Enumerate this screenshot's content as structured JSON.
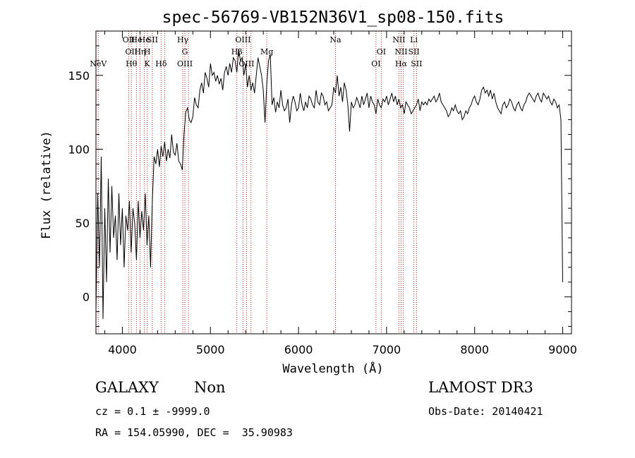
{
  "chart_data": {
    "type": "line",
    "title": "spec-56769-VB152N36V1_sp08-150.fits",
    "xlabel": "Wavelength (Å)",
    "ylabel": "Flux (relative)",
    "xlim": [
      3700,
      9100
    ],
    "ylim": [
      -25,
      180
    ],
    "xticks": [
      4000,
      5000,
      6000,
      7000,
      8000,
      9000
    ],
    "yticks": [
      0,
      50,
      100,
      150
    ],
    "x_minor_step": 200,
    "y_minor_step": 10,
    "grid": false,
    "line_color": "#000000",
    "marker_color": "#b22222",
    "series": [
      {
        "x": [
          3700,
          3720,
          3740,
          3760,
          3780,
          3800,
          3820,
          3840,
          3860,
          3880,
          3900,
          3920,
          3940,
          3960,
          3980,
          4000,
          4020,
          4040,
          4060,
          4080,
          4100,
          4120,
          4140,
          4160,
          4180,
          4200,
          4220,
          4240,
          4260,
          4280,
          4300,
          4320,
          4340,
          4360,
          4380,
          4400,
          4420,
          4440,
          4460,
          4480,
          4500,
          4520,
          4540,
          4560,
          4580,
          4600,
          4620,
          4640,
          4660,
          4680,
          4700,
          4720,
          4740,
          4760,
          4780,
          4800,
          4820,
          4840,
          4860,
          4880,
          4900,
          4920,
          4940,
          4960,
          4980,
          5000,
          5020,
          5040,
          5060,
          5080,
          5100,
          5120,
          5140,
          5160,
          5180,
          5200,
          5220,
          5240,
          5260,
          5280,
          5300,
          5320,
          5340,
          5360,
          5380,
          5400,
          5420,
          5440,
          5460,
          5480,
          5500,
          5520,
          5540,
          5560,
          5580,
          5600,
          5620,
          5640,
          5660,
          5680,
          5700,
          5720,
          5740,
          5760,
          5780,
          5800,
          5820,
          5840,
          5860,
          5880,
          5900,
          5920,
          5940,
          5960,
          5980,
          6000,
          6020,
          6040,
          6060,
          6080,
          6100,
          6120,
          6140,
          6160,
          6180,
          6200,
          6220,
          6240,
          6260,
          6280,
          6300,
          6320,
          6340,
          6360,
          6380,
          6400,
          6420,
          6440,
          6460,
          6480,
          6500,
          6520,
          6540,
          6560,
          6580,
          6600,
          6620,
          6640,
          6660,
          6680,
          6700,
          6720,
          6740,
          6760,
          6780,
          6800,
          6820,
          6840,
          6860,
          6880,
          6900,
          6920,
          6940,
          6960,
          6980,
          7000,
          7020,
          7040,
          7060,
          7080,
          7100,
          7120,
          7140,
          7160,
          7180,
          7200,
          7220,
          7240,
          7260,
          7280,
          7300,
          7320,
          7340,
          7360,
          7380,
          7400,
          7420,
          7440,
          7460,
          7480,
          7500,
          7520,
          7540,
          7560,
          7580,
          7600,
          7620,
          7640,
          7660,
          7680,
          7700,
          7720,
          7740,
          7760,
          7780,
          7800,
          7820,
          7840,
          7860,
          7880,
          7900,
          7920,
          7940,
          7960,
          7980,
          8000,
          8020,
          8040,
          8060,
          8080,
          8100,
          8120,
          8140,
          8160,
          8180,
          8200,
          8220,
          8240,
          8260,
          8280,
          8300,
          8320,
          8340,
          8360,
          8380,
          8400,
          8420,
          8440,
          8460,
          8480,
          8500,
          8520,
          8540,
          8560,
          8580,
          8600,
          8620,
          8640,
          8660,
          8680,
          8700,
          8720,
          8740,
          8760,
          8780,
          8800,
          8820,
          8840,
          8860,
          8880,
          8900,
          8920,
          8940,
          8960,
          8980,
          9000
        ],
        "y": [
          -10,
          70,
          20,
          95,
          -15,
          60,
          10,
          80,
          30,
          75,
          40,
          55,
          25,
          70,
          35,
          60,
          20,
          55,
          45,
          65,
          30,
          60,
          50,
          25,
          65,
          40,
          58,
          45,
          70,
          35,
          55,
          20,
          65,
          95,
          90,
          100,
          88,
          102,
          95,
          105,
          92,
          100,
          94,
          110,
          98,
          96,
          104,
          92,
          90,
          86,
          110,
          125,
          128,
          120,
          118,
          122,
          135,
          130,
          128,
          140,
          145,
          138,
          152,
          148,
          142,
          158,
          150,
          152,
          146,
          150,
          144,
          148,
          140,
          152,
          156,
          150,
          158,
          152,
          162,
          160,
          152,
          168,
          160,
          162,
          150,
          158,
          142,
          150,
          140,
          145,
          138,
          150,
          162,
          156,
          150,
          140,
          118,
          144,
          160,
          164,
          130,
          135,
          125,
          132,
          128,
          140,
          130,
          126,
          128,
          134,
          118,
          130,
          136,
          132,
          126,
          128,
          138,
          130,
          126,
          132,
          128,
          136,
          134,
          130,
          128,
          140,
          132,
          130,
          138,
          136,
          130,
          132,
          126,
          128,
          130,
          142,
          138,
          150,
          136,
          142,
          132,
          145,
          140,
          130,
          112,
          132,
          128,
          130,
          135,
          132,
          128,
          136,
          130,
          134,
          138,
          128,
          136,
          132,
          130,
          124,
          134,
          130,
          128,
          134,
          132,
          136,
          130,
          134,
          138,
          132,
          136,
          130,
          134,
          128,
          130,
          124,
          132,
          130,
          128,
          124,
          126,
          128,
          130,
          134,
          126,
          132,
          130,
          132,
          130,
          134,
          132,
          134,
          136,
          132,
          134,
          138,
          132,
          130,
          128,
          126,
          122,
          124,
          128,
          126,
          130,
          126,
          124,
          126,
          120,
          122,
          126,
          124,
          128,
          130,
          134,
          136,
          132,
          130,
          134,
          140,
          142,
          138,
          140,
          136,
          140,
          134,
          138,
          132,
          128,
          126,
          124,
          130,
          132,
          128,
          130,
          134,
          132,
          128,
          126,
          130,
          132,
          128,
          126,
          130,
          132,
          136,
          138,
          136,
          134,
          132,
          136,
          138,
          134,
          132,
          138,
          136,
          134,
          136,
          132,
          130,
          134,
          132,
          128,
          130,
          120,
          10
        ]
      }
    ],
    "lines": [
      {
        "wl": 3726,
        "labels": [
          {
            "text": "NeV",
            "row": 2
          }
        ]
      },
      {
        "wl": 4072,
        "labels": [
          {
            "text": "OII",
            "row": 0
          }
        ]
      },
      {
        "wl": 4102,
        "labels": [
          {
            "text": "OII",
            "row": 1
          },
          {
            "text": "Hθ",
            "row": 2
          }
        ]
      },
      {
        "wl": 4160,
        "labels": [
          {
            "text": "He",
            "row": 0
          }
        ]
      },
      {
        "wl": 4200,
        "labels": [
          {
            "text": "Hη",
            "row": 1
          }
        ]
      },
      {
        "wl": 4250,
        "labels": [
          {
            "text": "He",
            "row": 0
          }
        ]
      },
      {
        "wl": 4282,
        "labels": [
          {
            "text": "H",
            "row": 1
          },
          {
            "text": "K",
            "row": 2
          }
        ]
      },
      {
        "wl": 4340,
        "labels": [
          {
            "text": "SII",
            "row": 0
          }
        ]
      },
      {
        "wl": 4440,
        "labels": [
          {
            "text": "Hδ",
            "row": 2
          }
        ]
      },
      {
        "wl": 4482,
        "labels": []
      },
      {
        "wl": 4686,
        "labels": [
          {
            "text": "Hγ",
            "row": 0
          }
        ]
      },
      {
        "wl": 4710,
        "labels": [
          {
            "text": "G",
            "row": 1
          },
          {
            "text": "OIII",
            "row": 2
          }
        ]
      },
      {
        "wl": 4750,
        "labels": []
      },
      {
        "wl": 5300,
        "labels": [
          {
            "text": "Hβ",
            "row": 1
          }
        ]
      },
      {
        "wl": 5370,
        "labels": [
          {
            "text": "OIII",
            "row": 0
          }
        ]
      },
      {
        "wl": 5410,
        "labels": [
          {
            "text": "OIII",
            "row": 2
          }
        ]
      },
      {
        "wl": 5460,
        "labels": []
      },
      {
        "wl": 5640,
        "labels": [
          {
            "text": "Mg",
            "row": 1
          }
        ]
      },
      {
        "wl": 6420,
        "labels": [
          {
            "text": "Na",
            "row": 0
          }
        ]
      },
      {
        "wl": 6880,
        "labels": [
          {
            "text": "OI",
            "row": 2
          }
        ]
      },
      {
        "wl": 6940,
        "labels": [
          {
            "text": "OI",
            "row": 1
          }
        ]
      },
      {
        "wl": 7140,
        "labels": [
          {
            "text": "NII",
            "row": 0
          }
        ]
      },
      {
        "wl": 7165,
        "labels": [
          {
            "text": "NII",
            "row": 1
          },
          {
            "text": "Hα",
            "row": 2
          }
        ]
      },
      {
        "wl": 7190,
        "labels": []
      },
      {
        "wl": 7310,
        "labels": [
          {
            "text": "SII",
            "row": 1
          },
          {
            "text": "Li",
            "row": 0
          }
        ]
      },
      {
        "wl": 7340,
        "labels": [
          {
            "text": "SII",
            "row": 2
          }
        ]
      }
    ]
  },
  "info": {
    "class": "GALAXY",
    "subclass": "Non",
    "survey": "LAMOST DR3",
    "cz_text": "cz = 0.1 ± -9999.0",
    "obs_date": "Obs-Date: 20140421",
    "coords": "RA = 154.05990, DEC =  35.90983"
  }
}
